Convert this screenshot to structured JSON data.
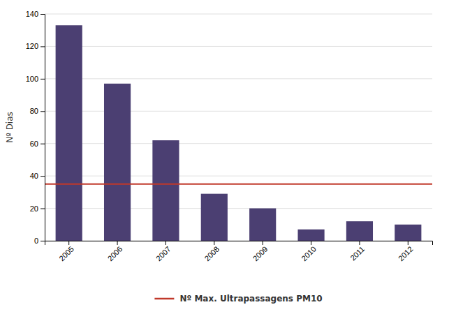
{
  "chart_data": {
    "type": "bar",
    "ylabel": "Nº Dias",
    "categories": [
      "2005",
      "2006",
      "2007",
      "2008",
      "2009",
      "2010",
      "2011",
      "2012"
    ],
    "values": [
      133,
      97,
      62,
      29,
      20,
      7,
      12,
      10
    ],
    "color": "#4B3F72",
    "reference_line": {
      "name": "Nº Max. Ultrapassagens PM10",
      "value": 35,
      "color": "#C0392B"
    },
    "ylim": [
      0,
      140
    ],
    "yticks": [
      0,
      20,
      40,
      60,
      80,
      100,
      120,
      140
    ],
    "grid": true,
    "legend": "bottom"
  }
}
